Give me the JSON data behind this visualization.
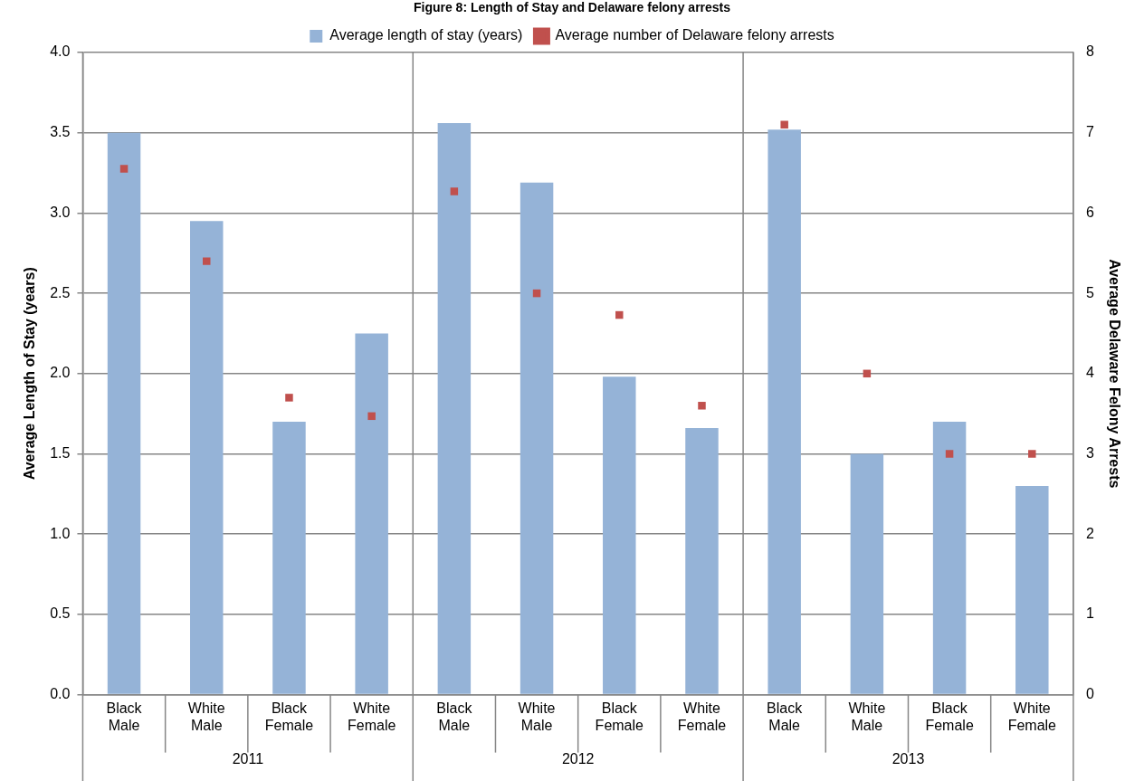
{
  "chart_data": {
    "type": "bar",
    "title": "Figure 8: Length of Stay and Delaware felony arrests",
    "categories": [
      "Black Male",
      "White Male",
      "Black Female",
      "White Female",
      "Black Male",
      "White Male",
      "Black Female",
      "White Female",
      "Black Male",
      "White Male",
      "Black Female",
      "White Female"
    ],
    "ylabel": "Average Length of Stay (years)",
    "y2label": "Average Delaware Felony Arrests",
    "ylim": [
      0,
      4
    ],
    "yticks": [
      {
        "value": 0,
        "label": "0.0"
      },
      {
        "value": 0.5,
        "label": "0.5"
      },
      {
        "value": 1,
        "label": "1.0"
      },
      {
        "value": 1.5,
        "label": "1.5"
      },
      {
        "value": 2,
        "label": "2.0"
      },
      {
        "value": 2.5,
        "label": "2.5"
      },
      {
        "value": 3,
        "label": "3.0"
      },
      {
        "value": 3.5,
        "label": "3.5"
      },
      {
        "value": 4,
        "label": "4.0"
      }
    ],
    "y2lim": [
      0,
      8
    ],
    "y2ticks": [
      0,
      1,
      2,
      3,
      4,
      5,
      6,
      7,
      8
    ],
    "grid": "y",
    "legend": "top",
    "annotations": [
      "2011",
      "2012",
      "2013"
    ],
    "series": [
      {
        "name": "Average length of stay (years)",
        "color": "#95b3d7",
        "values": [
          3.5,
          2.95,
          1.7,
          2.25,
          3.56,
          3.19,
          1.98,
          1.66,
          3.52,
          1.5,
          1.7,
          1.3
        ]
      },
      {
        "name": "Average number of Delaware felony arrests",
        "type": "scatter",
        "axis": "y2",
        "marker": "square",
        "color": "#c0504d",
        "values": [
          6.55,
          5.4,
          3.7,
          3.47,
          6.27,
          5.0,
          4.73,
          3.6,
          7.1,
          4.0,
          3.0,
          3.0
        ]
      }
    ]
  }
}
